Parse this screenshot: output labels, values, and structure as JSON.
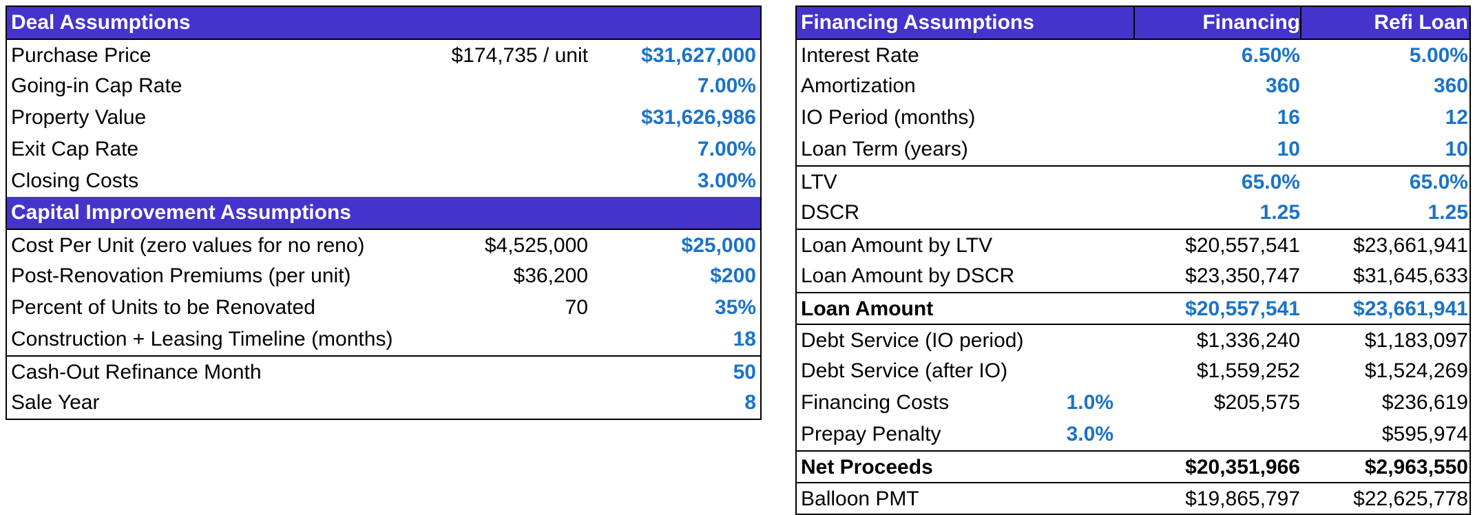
{
  "deal": {
    "header": "Deal Assumptions",
    "rows": [
      {
        "label": "Purchase Price",
        "mid": "$174,735 / unit",
        "value": "$31,627,000"
      },
      {
        "label": "Going-in Cap Rate",
        "mid": "",
        "value": "7.00%"
      },
      {
        "label": "Property Value",
        "mid": "",
        "value": "$31,626,986"
      },
      {
        "label": "Exit Cap Rate",
        "mid": "",
        "value": "7.00%"
      },
      {
        "label": "Closing Costs",
        "mid": "",
        "value": "3.00%"
      }
    ]
  },
  "capex": {
    "header": "Capital Improvement Assumptions",
    "rows": [
      {
        "label": "Cost Per Unit (zero values for no reno)",
        "mid": "$4,525,000",
        "value": "$25,000"
      },
      {
        "label": "Post-Renovation Premiums (per unit)",
        "mid": "$36,200",
        "value": "$200"
      },
      {
        "label": "Percent of Units to be Renovated",
        "mid": "70",
        "value": "35%"
      },
      {
        "label": "Construction + Leasing Timeline (months)",
        "mid": "",
        "value": "18"
      },
      {
        "label": "Cash-Out Refinance Month",
        "mid": "",
        "value": "50"
      },
      {
        "label": "Sale Year",
        "mid": "",
        "value": "8"
      }
    ]
  },
  "financing": {
    "header": "Financing Assumptions",
    "col_financing": "Financing",
    "col_refi": "Refi Loan",
    "rows": [
      {
        "label": "Interest Rate",
        "pct": "",
        "financing": "6.50%",
        "refi": "5.00%"
      },
      {
        "label": "Amortization",
        "pct": "",
        "financing": "360",
        "refi": "360"
      },
      {
        "label": "IO Period (months)",
        "pct": "",
        "financing": "16",
        "refi": "12"
      },
      {
        "label": "Loan Term (years)",
        "pct": "",
        "financing": "10",
        "refi": "10"
      },
      {
        "label": "LTV",
        "pct": "",
        "financing": "65.0%",
        "refi": "65.0%"
      },
      {
        "label": "DSCR",
        "pct": "",
        "financing": "1.25",
        "refi": "1.25"
      },
      {
        "label": "Loan Amount by LTV",
        "pct": "",
        "financing": "$20,557,541",
        "refi": "$23,661,941"
      },
      {
        "label": "Loan Amount by DSCR",
        "pct": "",
        "financing": "$23,350,747",
        "refi": "$31,645,633"
      },
      {
        "label": "Loan Amount",
        "pct": "",
        "financing": "$20,557,541",
        "refi": "$23,661,941"
      },
      {
        "label": "Debt Service (IO period)",
        "pct": "",
        "financing": "$1,336,240",
        "refi": "$1,183,097"
      },
      {
        "label": "Debt Service (after IO)",
        "pct": "",
        "financing": "$1,559,252",
        "refi": "$1,524,269"
      },
      {
        "label": "Financing Costs",
        "pct": "1.0%",
        "financing": "$205,575",
        "refi": "$236,619"
      },
      {
        "label": "Prepay Penalty",
        "pct": "3.0%",
        "financing": "",
        "refi": "$595,974"
      },
      {
        "label": "Net Proceeds",
        "pct": "",
        "financing": "$20,351,966",
        "refi": "$2,963,550"
      },
      {
        "label": "Balloon PMT",
        "pct": "",
        "financing": "$19,865,797",
        "refi": "$22,625,778"
      }
    ]
  },
  "colors": {
    "header_bg": "#4433cc",
    "input_blue": "#1a73c8"
  }
}
